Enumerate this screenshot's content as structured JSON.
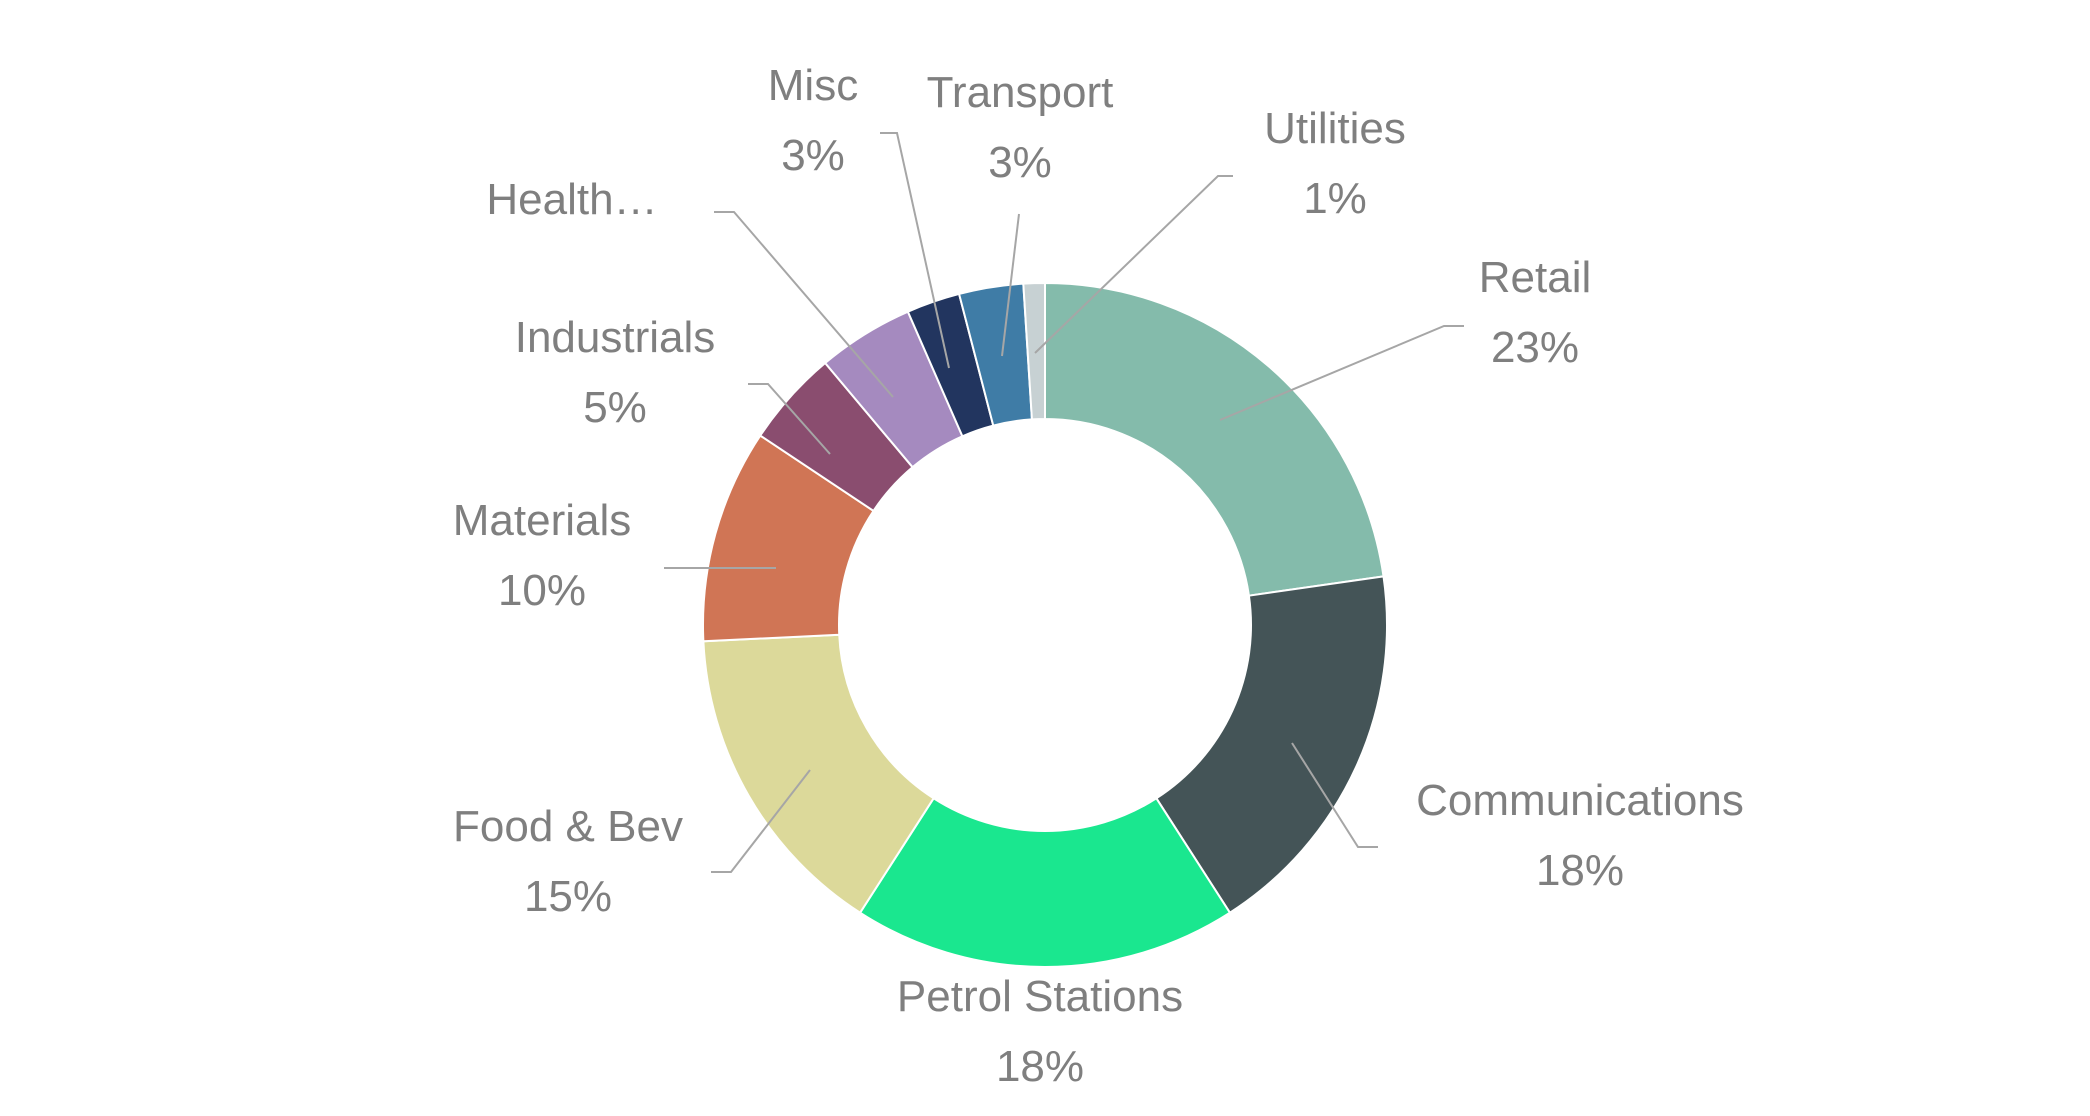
{
  "chart_data": {
    "type": "donut",
    "title": "",
    "categories": [
      "Retail",
      "Communications",
      "Petrol Stations",
      "Food & Bev",
      "Materials",
      "Industrials",
      "Health…",
      "Misc",
      "Transport",
      "Utilities"
    ],
    "values": [
      22.5,
      18.0,
      18.0,
      15.0,
      10.0,
      4.5,
      4.5,
      2.5,
      3.0,
      1.0
    ],
    "percent_labels": [
      "23%",
      "18%",
      "18%",
      "15%",
      "10%",
      "5%",
      "",
      "3%",
      "3%",
      "1%"
    ],
    "colors": [
      "#84bbab",
      "#445457",
      "#1ae78f",
      "#dcd99a",
      "#d07555",
      "#8a4d6f",
      "#a58abf",
      "#22355f",
      "#3f7ca6",
      "#c7d1d3"
    ],
    "start_angle": "12 o'clock",
    "direction": "clockwise",
    "legend": "none"
  }
}
